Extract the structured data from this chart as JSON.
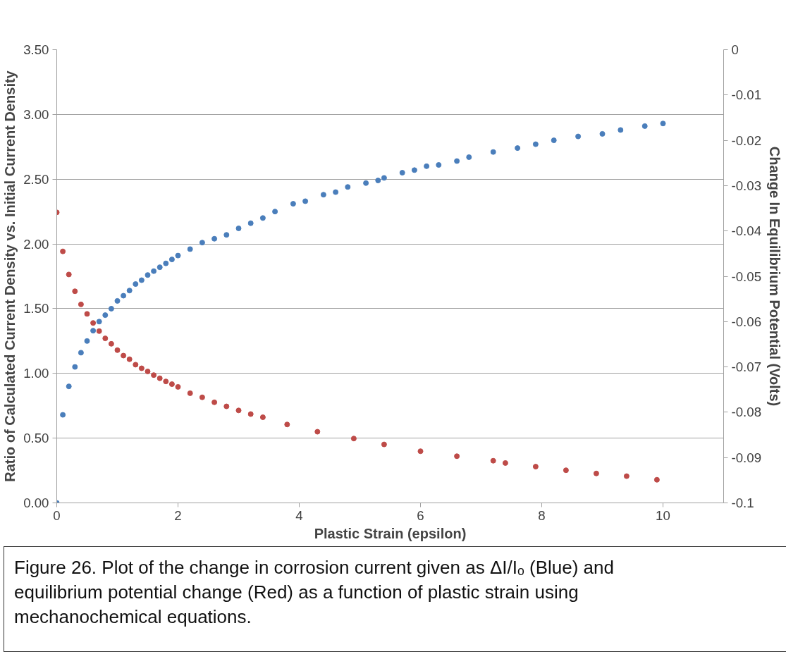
{
  "chart_data": {
    "type": "scatter",
    "xlabel": "Plastic Strain (epsilon)",
    "ylabel": "Ratio of Calculated Current Density vs. Initial Current Density",
    "y2label": "Change In Equilibrium Potential (Volts)",
    "xlim": [
      0,
      11
    ],
    "xticks": [
      0,
      2,
      4,
      6,
      8,
      10
    ],
    "ylim": [
      0,
      3.5
    ],
    "yticks": [
      {
        "value": 0,
        "label": "0.00"
      },
      {
        "value": 0.5,
        "label": "0.50"
      },
      {
        "value": 1,
        "label": "1.00"
      },
      {
        "value": 1.5,
        "label": "1.50"
      },
      {
        "value": 2,
        "label": "2.00"
      },
      {
        "value": 2.5,
        "label": "2.50"
      },
      {
        "value": 3,
        "label": "3.00"
      },
      {
        "value": 3.5,
        "label": "3.50"
      }
    ],
    "y2lim": [
      -0.1,
      0
    ],
    "y2ticks": [
      0,
      -0.01,
      -0.02,
      -0.03,
      -0.04,
      -0.05,
      -0.06,
      -0.07,
      -0.08,
      -0.09,
      -0.1
    ],
    "grid": "y",
    "marker": "circle",
    "series": [
      {
        "color": "#4a7ebb",
        "x": [
          0,
          0.1,
          0.2,
          0.3,
          0.4,
          0.5,
          0.6,
          0.7,
          0.8,
          0.9,
          1.0,
          1.1,
          1.2,
          1.3,
          1.4,
          1.5,
          1.6,
          1.7,
          1.8,
          1.9,
          2.0,
          2.2,
          2.4,
          2.6,
          2.8,
          3.0,
          3.2,
          3.4,
          3.6,
          3.9,
          4.1,
          4.4,
          4.6,
          4.8,
          5.1,
          5.3,
          5.4,
          5.7,
          5.9,
          6.1,
          6.3,
          6.6,
          6.8,
          7.2,
          7.6,
          7.9,
          8.2,
          8.6,
          9.0,
          9.3,
          9.7,
          10.0
        ],
        "values": [
          0,
          0.68,
          0.9,
          1.05,
          1.16,
          1.25,
          1.33,
          1.4,
          1.45,
          1.5,
          1.56,
          1.6,
          1.64,
          1.69,
          1.72,
          1.76,
          1.79,
          1.82,
          1.85,
          1.88,
          1.91,
          1.96,
          2.01,
          2.04,
          2.07,
          2.12,
          2.16,
          2.2,
          2.25,
          2.31,
          2.33,
          2.38,
          2.4,
          2.44,
          2.47,
          2.49,
          2.51,
          2.55,
          2.57,
          2.6,
          2.61,
          2.64,
          2.67,
          2.71,
          2.74,
          2.77,
          2.8,
          2.83,
          2.85,
          2.88,
          2.91,
          2.93
        ]
      },
      {
        "color": "#be4b48",
        "axis": "y2",
        "x": [
          0,
          0.1,
          0.2,
          0.3,
          0.4,
          0.5,
          0.6,
          0.7,
          0.8,
          0.9,
          1.0,
          1.1,
          1.2,
          1.3,
          1.4,
          1.5,
          1.6,
          1.7,
          1.8,
          1.9,
          2.0,
          2.2,
          2.4,
          2.6,
          2.8,
          3.0,
          3.2,
          3.4,
          3.8,
          4.3,
          4.9,
          5.4,
          6.0,
          6.6,
          7.2,
          7.4,
          7.9,
          8.4,
          8.9,
          9.4,
          9.9
        ],
        "values": [
          -0.0359,
          -0.0445,
          -0.0496,
          -0.0533,
          -0.0562,
          -0.0583,
          -0.0603,
          -0.0621,
          -0.0637,
          -0.0649,
          -0.0663,
          -0.0675,
          -0.0683,
          -0.0695,
          -0.0703,
          -0.071,
          -0.0718,
          -0.0725,
          -0.0732,
          -0.0738,
          -0.0744,
          -0.0758,
          -0.0767,
          -0.0778,
          -0.0787,
          -0.0796,
          -0.0804,
          -0.0811,
          -0.0827,
          -0.0843,
          -0.0858,
          -0.0871,
          -0.0886,
          -0.0897,
          -0.0907,
          -0.0912,
          -0.092,
          -0.0928,
          -0.0935,
          -0.0941,
          -0.0949
        ]
      }
    ],
    "annotations": [
      "Figure 26. Plot of the change in corrosion current given as ΔI/Iₒ (Blue) and equilibrium potential change (Red) as a function of plastic strain using mechanochemical equations."
    ]
  }
}
